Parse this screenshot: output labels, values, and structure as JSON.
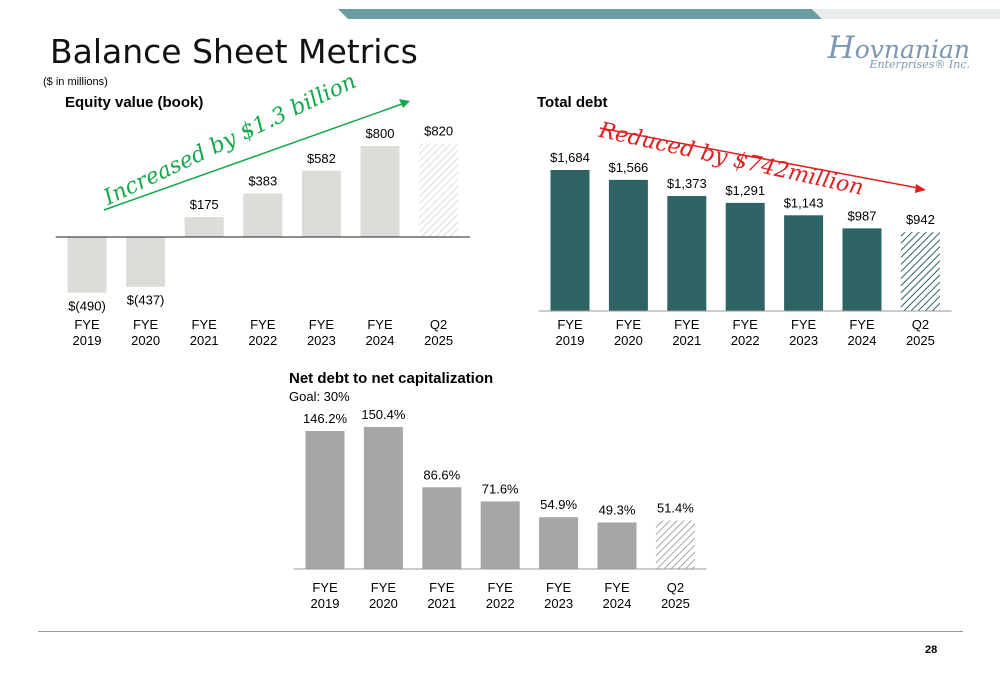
{
  "title": "Balance Sheet Metrics",
  "units_note": "($ in millions)",
  "logo": {
    "first_letter": "H",
    "rest": "ovnanian",
    "line2": "Enterprises® Inc."
  },
  "page_number": "28",
  "colors": {
    "stripe_teal": "#6b9ea0",
    "stripe_light": "#e8ecec",
    "equity_bar": "#dcdcd8",
    "debt_bar": "#2e6265",
    "netdebt_bar": "#a6a6a6",
    "callout_green": "#14a84b",
    "callout_red": "#e02020"
  },
  "callouts": {
    "equity": "Increased by $1.3 billion",
    "debt": "Reduced by $742million"
  },
  "chart_data": [
    {
      "type": "bar",
      "title": "Equity value (book)",
      "categories": [
        [
          "FYE",
          "2019"
        ],
        [
          "FYE",
          "2020"
        ],
        [
          "FYE",
          "2021"
        ],
        [
          "FYE",
          "2022"
        ],
        [
          "FYE",
          "2023"
        ],
        [
          "FYE",
          "2024"
        ],
        [
          "Q2",
          "2025"
        ]
      ],
      "values": [
        -490,
        -437,
        175,
        383,
        582,
        800,
        820
      ],
      "data_labels": [
        "$(490)",
        "$(437)",
        "$175",
        "$383",
        "$582",
        "$800",
        "$820"
      ],
      "hatched_last": true,
      "baseline": 0
    },
    {
      "type": "bar",
      "title": "Total debt",
      "categories": [
        [
          "FYE",
          "2019"
        ],
        [
          "FYE",
          "2020"
        ],
        [
          "FYE",
          "2021"
        ],
        [
          "FYE",
          "2022"
        ],
        [
          "FYE",
          "2023"
        ],
        [
          "FYE",
          "2024"
        ],
        [
          "Q2",
          "2025"
        ]
      ],
      "values": [
        1684,
        1566,
        1373,
        1291,
        1143,
        987,
        942
      ],
      "data_labels": [
        "$1,684",
        "$1,566",
        "$1,373",
        "$1,291",
        "$1,143",
        "$987",
        "$942"
      ],
      "hatched_last": true,
      "baseline": 0
    },
    {
      "type": "bar",
      "title": "Net debt to net capitalization",
      "subtitle": "Goal: 30%",
      "categories": [
        [
          "FYE",
          "2019"
        ],
        [
          "FYE",
          "2020"
        ],
        [
          "FYE",
          "2021"
        ],
        [
          "FYE",
          "2022"
        ],
        [
          "FYE",
          "2023"
        ],
        [
          "FYE",
          "2024"
        ],
        [
          "Q2",
          "2025"
        ]
      ],
      "values": [
        146.2,
        150.4,
        86.6,
        71.6,
        54.9,
        49.3,
        51.4
      ],
      "data_labels": [
        "146.2%",
        "150.4%",
        "86.6%",
        "71.6%",
        "54.9%",
        "49.3%",
        "51.4%"
      ],
      "hatched_last": true,
      "baseline": 0
    }
  ]
}
